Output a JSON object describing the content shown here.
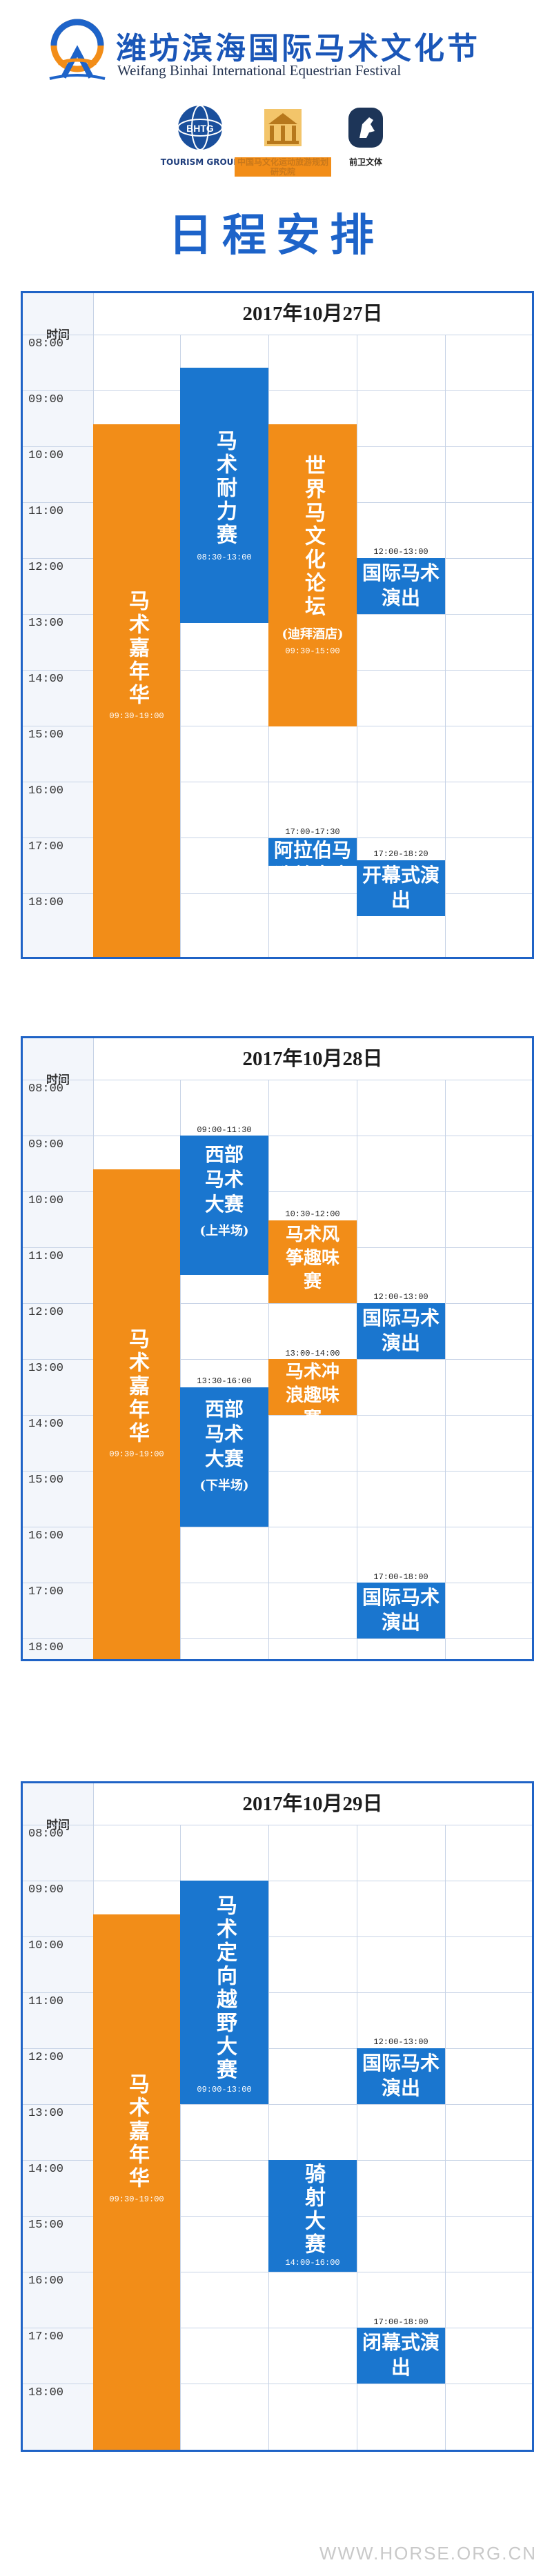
{
  "header": {
    "title_cn": "潍坊滨海国际马术文化节",
    "title_en": "Weifang Binhai International Equestrian Festival",
    "sponsors": [
      {
        "label": "TOURISM GROUP",
        "icon": "globe-logo-icon",
        "badge": "BHTG"
      },
      {
        "label": "中国马文化运动旅游规划研究院",
        "icon": "building-logo-icon"
      },
      {
        "label": "前卫文体",
        "icon": "horse-head-logo-icon"
      }
    ],
    "page_title": "日程安排"
  },
  "panels": [
    {
      "date": "2017年10月27日",
      "time_header": "时间",
      "times": [
        "08:00",
        "09:00",
        "10:00",
        "11:00",
        "12:00",
        "13:00",
        "14:00",
        "15:00",
        "16:00",
        "17:00",
        "18:00"
      ],
      "events": [
        {
          "title": "马术嘉年华",
          "time": "09:30-19:00"
        },
        {
          "title": "马术耐力赛",
          "time": "08:30-13:00"
        },
        {
          "title": "世界马文化论坛",
          "sub": "(迪拜酒店)",
          "time": "09:30-15:00"
        },
        {
          "title": "国际马术演出",
          "time": "12:00-13:00"
        },
        {
          "title": "阿拉伯马选美大赛",
          "time": "17:00-17:30"
        },
        {
          "title": "开幕式演出",
          "time": "17:20-18:20"
        }
      ]
    },
    {
      "date": "2017年10月28日",
      "time_header": "时间",
      "times": [
        "08:00",
        "09:00",
        "10:00",
        "11:00",
        "12:00",
        "13:00",
        "14:00",
        "15:00",
        "16:00",
        "17:00",
        "18:00"
      ],
      "events": [
        {
          "title": "马术嘉年华",
          "time": "09:30-19:00"
        },
        {
          "title": "西部马术大赛",
          "sub": "(上半场)",
          "time": "09:00-11:30"
        },
        {
          "title": "马术风筝趣味赛",
          "time": "10:30-12:00"
        },
        {
          "title": "国际马术演出",
          "time": "12:00-13:00"
        },
        {
          "title": "马术冲浪趣味赛",
          "time": "13:00-14:00"
        },
        {
          "title": "西部马术大赛",
          "sub": "(下半场)",
          "time": "13:30-16:00"
        },
        {
          "title": "国际马术演出",
          "time": "17:00-18:00"
        }
      ]
    },
    {
      "date": "2017年10月29日",
      "time_header": "时间",
      "times": [
        "08:00",
        "09:00",
        "10:00",
        "11:00",
        "12:00",
        "13:00",
        "14:00",
        "15:00",
        "16:00",
        "17:00",
        "18:00"
      ],
      "events": [
        {
          "title": "马术嘉年华",
          "time": "09:30-19:00"
        },
        {
          "title": "马术定向越野大赛",
          "time": "09:00-13:00"
        },
        {
          "title": "国际马术演出",
          "time": "12:00-13:00"
        },
        {
          "title": "骑射大赛",
          "time": "14:00-16:00"
        },
        {
          "title": "闭幕式演出",
          "time": "17:00-18:00"
        }
      ]
    }
  ],
  "watermark": "WWW.HORSE.ORG.CN",
  "colors": {
    "blue": "#1a76cf",
    "orange": "#f28d18",
    "border": "#1f63c6",
    "title": "#1d63c9"
  }
}
